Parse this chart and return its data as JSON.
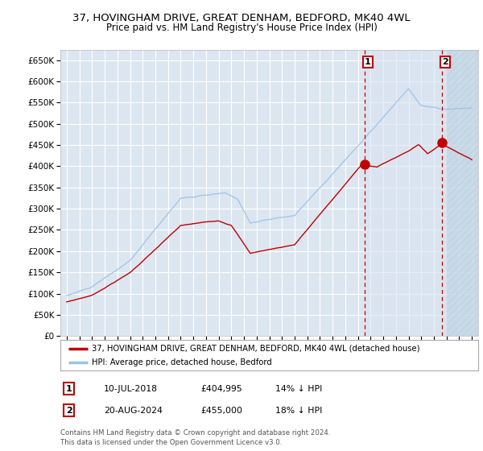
{
  "title_line1": "37, HOVINGHAM DRIVE, GREAT DENHAM, BEDFORD, MK40 4WL",
  "title_line2": "Price paid vs. HM Land Registry's House Price Index (HPI)",
  "background_color": "#ffffff",
  "plot_bg_color": "#dce6f1",
  "grid_color": "#ffffff",
  "ylim": [
    0,
    675000
  ],
  "yticks": [
    0,
    50000,
    100000,
    150000,
    200000,
    250000,
    300000,
    350000,
    400000,
    450000,
    500000,
    550000,
    600000,
    650000
  ],
  "ytick_labels": [
    "£0",
    "£50K",
    "£100K",
    "£150K",
    "£200K",
    "£250K",
    "£300K",
    "£350K",
    "£400K",
    "£450K",
    "£500K",
    "£550K",
    "£600K",
    "£650K"
  ],
  "xlim_min": 1994.5,
  "xlim_max": 2027.5,
  "sale1_date": 2018.52,
  "sale1_price": 404995,
  "sale2_date": 2024.63,
  "sale2_price": 455000,
  "legend_line1": "37, HOVINGHAM DRIVE, GREAT DENHAM, BEDFORD, MK40 4WL (detached house)",
  "legend_line2": "HPI: Average price, detached house, Bedford",
  "footer": "Contains HM Land Registry data © Crown copyright and database right 2024.\nThis data is licensed under the Open Government Licence v3.0.",
  "line_red_color": "#c00000",
  "line_blue_color": "#9dc3e6",
  "vline_color": "#c00000",
  "shade_color": "#d9e4f0",
  "hatch_color": "#b8cfe0"
}
